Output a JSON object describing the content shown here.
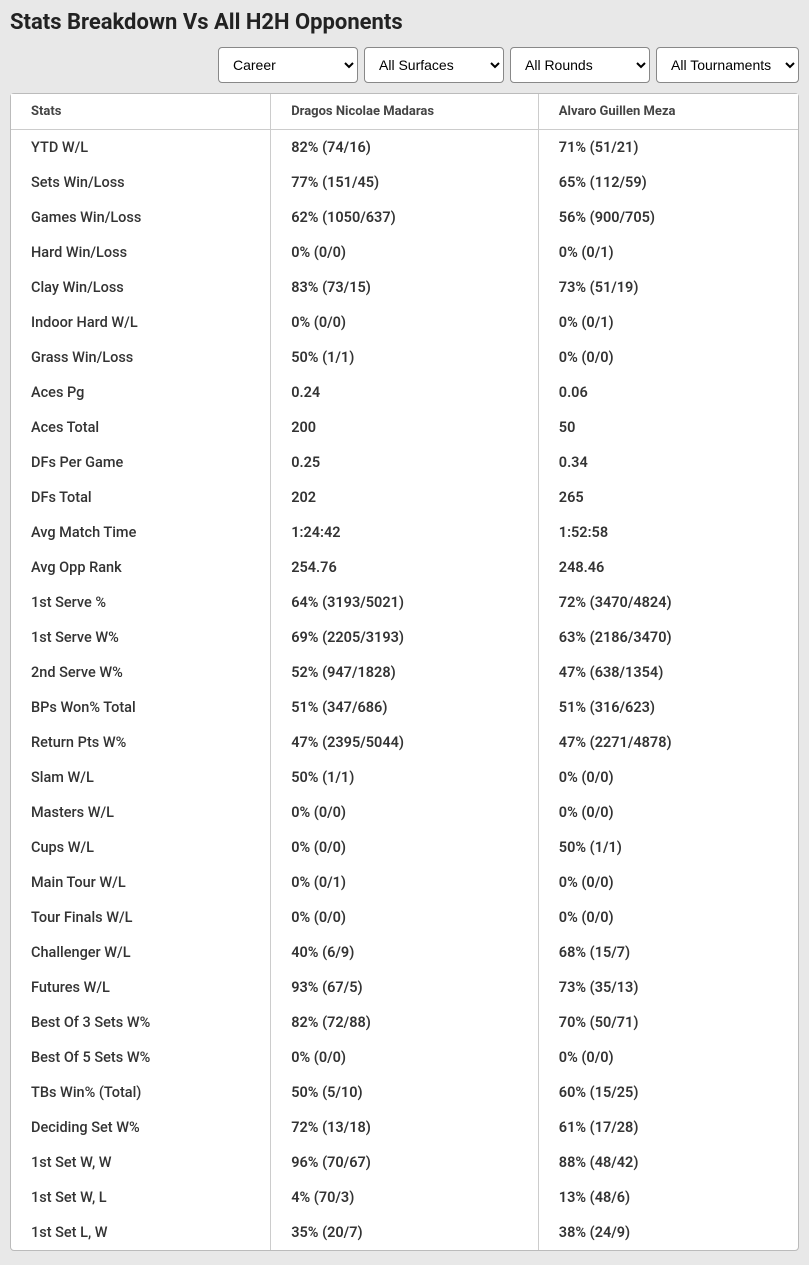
{
  "title": "Stats Breakdown Vs All H2H Opponents",
  "filters": {
    "timeframe": "Career",
    "surface": "All Surfaces",
    "round": "All Rounds",
    "tournament": "All Tournaments"
  },
  "table": {
    "headers": {
      "stats": "Stats",
      "player1": "Dragos Nicolae Madaras",
      "player2": "Alvaro Guillen Meza"
    },
    "rows": [
      {
        "stat": "YTD W/L",
        "p1": "82% (74/16)",
        "p2": "71% (51/21)"
      },
      {
        "stat": "Sets Win/Loss",
        "p1": "77% (151/45)",
        "p2": "65% (112/59)"
      },
      {
        "stat": "Games Win/Loss",
        "p1": "62% (1050/637)",
        "p2": "56% (900/705)"
      },
      {
        "stat": "Hard Win/Loss",
        "p1": "0% (0/0)",
        "p2": "0% (0/1)"
      },
      {
        "stat": "Clay Win/Loss",
        "p1": "83% (73/15)",
        "p2": "73% (51/19)"
      },
      {
        "stat": "Indoor Hard W/L",
        "p1": "0% (0/0)",
        "p2": "0% (0/1)"
      },
      {
        "stat": "Grass Win/Loss",
        "p1": "50% (1/1)",
        "p2": "0% (0/0)"
      },
      {
        "stat": "Aces Pg",
        "p1": "0.24",
        "p2": "0.06"
      },
      {
        "stat": "Aces Total",
        "p1": "200",
        "p2": "50"
      },
      {
        "stat": "DFs Per Game",
        "p1": "0.25",
        "p2": "0.34"
      },
      {
        "stat": "DFs Total",
        "p1": "202",
        "p2": "265"
      },
      {
        "stat": "Avg Match Time",
        "p1": "1:24:42",
        "p2": "1:52:58"
      },
      {
        "stat": "Avg Opp Rank",
        "p1": "254.76",
        "p2": "248.46"
      },
      {
        "stat": "1st Serve %",
        "p1": "64% (3193/5021)",
        "p2": "72% (3470/4824)"
      },
      {
        "stat": "1st Serve W%",
        "p1": "69% (2205/3193)",
        "p2": "63% (2186/3470)"
      },
      {
        "stat": "2nd Serve W%",
        "p1": "52% (947/1828)",
        "p2": "47% (638/1354)"
      },
      {
        "stat": "BPs Won% Total",
        "p1": "51% (347/686)",
        "p2": "51% (316/623)"
      },
      {
        "stat": "Return Pts W%",
        "p1": "47% (2395/5044)",
        "p2": "47% (2271/4878)"
      },
      {
        "stat": "Slam W/L",
        "p1": "50% (1/1)",
        "p2": "0% (0/0)"
      },
      {
        "stat": "Masters W/L",
        "p1": "0% (0/0)",
        "p2": "0% (0/0)"
      },
      {
        "stat": "Cups W/L",
        "p1": "0% (0/0)",
        "p2": "50% (1/1)"
      },
      {
        "stat": "Main Tour W/L",
        "p1": "0% (0/1)",
        "p2": "0% (0/0)"
      },
      {
        "stat": "Tour Finals W/L",
        "p1": "0% (0/0)",
        "p2": "0% (0/0)"
      },
      {
        "stat": "Challenger W/L",
        "p1": "40% (6/9)",
        "p2": "68% (15/7)"
      },
      {
        "stat": "Futures W/L",
        "p1": "93% (67/5)",
        "p2": "73% (35/13)"
      },
      {
        "stat": "Best Of 3 Sets W%",
        "p1": "82% (72/88)",
        "p2": "70% (50/71)"
      },
      {
        "stat": "Best Of 5 Sets W%",
        "p1": "0% (0/0)",
        "p2": "0% (0/0)"
      },
      {
        "stat": "TBs Win% (Total)",
        "p1": "50% (5/10)",
        "p2": "60% (15/25)"
      },
      {
        "stat": "Deciding Set W%",
        "p1": "72% (13/18)",
        "p2": "61% (17/28)"
      },
      {
        "stat": "1st Set W, W",
        "p1": "96% (70/67)",
        "p2": "88% (48/42)"
      },
      {
        "stat": "1st Set W, L",
        "p1": "4% (70/3)",
        "p2": "13% (48/6)"
      },
      {
        "stat": "1st Set L, W",
        "p1": "35% (20/7)",
        "p2": "38% (24/9)"
      }
    ]
  }
}
